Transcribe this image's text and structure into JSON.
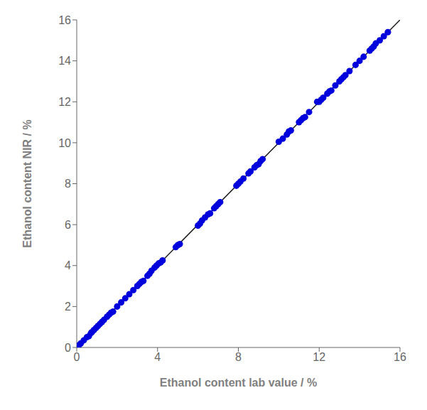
{
  "chart_data": {
    "type": "scatter",
    "xlabel": "Ethanol content lab value / %",
    "ylabel": "Ethanol content NIR / %",
    "xlim": [
      0,
      16
    ],
    "ylim": [
      0,
      16
    ],
    "xticks": [
      0,
      4,
      8,
      12,
      16
    ],
    "yticks": [
      0,
      2,
      4,
      6,
      8,
      10,
      12,
      14,
      16
    ],
    "grid": false,
    "series": [
      {
        "type": "line",
        "color": "#1a1a1a",
        "x": [
          0,
          16
        ],
        "values": [
          0,
          16
        ]
      },
      {
        "type": "scatter",
        "color": "#0000DD",
        "x": [
          0.1,
          0.2,
          0.35,
          0.5,
          0.6,
          0.7,
          0.75,
          0.85,
          0.95,
          1.05,
          1.15,
          1.25,
          1.35,
          1.5,
          1.6,
          1.7,
          1.8,
          2.0,
          2.2,
          2.4,
          2.6,
          2.8,
          3.0,
          3.1,
          3.2,
          3.3,
          3.5,
          3.6,
          3.7,
          3.85,
          3.95,
          4.05,
          4.15,
          4.25,
          4.9,
          5.0,
          5.1,
          6.0,
          6.1,
          6.2,
          6.35,
          6.5,
          6.6,
          6.8,
          6.9,
          7.0,
          7.1,
          7.9,
          8.0,
          8.1,
          8.25,
          8.5,
          8.6,
          8.8,
          8.9,
          9.0,
          9.1,
          9.2,
          10.0,
          10.2,
          10.4,
          10.5,
          10.6,
          11.0,
          11.1,
          11.2,
          11.3,
          11.5,
          11.9,
          12.0,
          12.1,
          12.2,
          12.4,
          12.5,
          12.6,
          12.8,
          13.0,
          13.1,
          13.2,
          13.3,
          13.5,
          13.8,
          14.0,
          14.2,
          14.5,
          14.6,
          14.7,
          14.8,
          15.0,
          15.2,
          15.4
        ],
        "values": [
          0.1,
          0.2,
          0.35,
          0.5,
          0.55,
          0.7,
          0.75,
          0.85,
          0.95,
          1.05,
          1.15,
          1.25,
          1.35,
          1.5,
          1.6,
          1.7,
          1.75,
          2.0,
          2.2,
          2.4,
          2.6,
          2.8,
          3.0,
          3.1,
          3.2,
          3.25,
          3.5,
          3.6,
          3.75,
          3.9,
          4.0,
          4.1,
          4.15,
          4.25,
          4.9,
          5.0,
          5.05,
          5.95,
          6.05,
          6.2,
          6.35,
          6.5,
          6.55,
          6.8,
          6.9,
          7.0,
          7.1,
          7.9,
          8.0,
          8.1,
          8.25,
          8.5,
          8.6,
          8.8,
          8.9,
          8.95,
          9.1,
          9.2,
          10.05,
          10.2,
          10.4,
          10.55,
          10.6,
          11.0,
          11.1,
          11.2,
          11.25,
          11.5,
          12.0,
          12.0,
          12.1,
          12.2,
          12.4,
          12.5,
          12.55,
          12.8,
          13.0,
          13.1,
          13.2,
          13.3,
          13.5,
          13.8,
          14.0,
          14.2,
          14.5,
          14.6,
          14.7,
          14.85,
          15.0,
          15.2,
          15.4
        ]
      }
    ]
  }
}
